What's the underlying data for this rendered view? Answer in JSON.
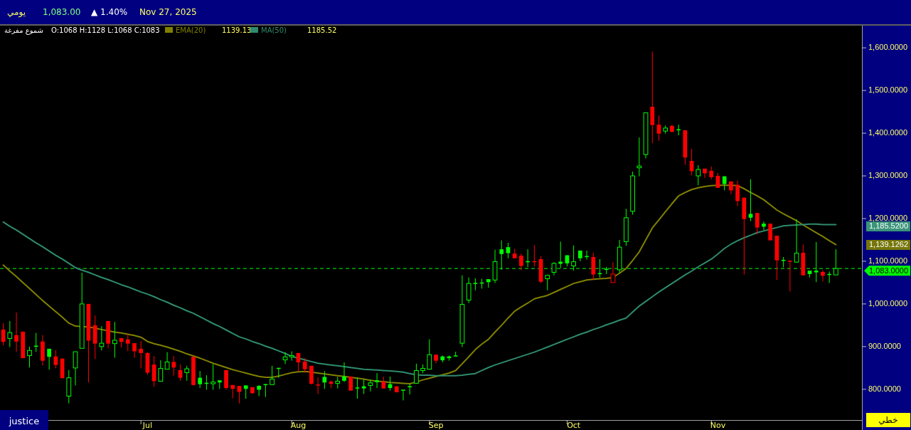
{
  "chart_data": {
    "type": "candlestick",
    "title": "يومي",
    "subtitle": "شموع مفرغة",
    "categories": [
      null,
      null,
      null,
      null,
      null,
      null,
      null,
      null,
      null,
      null,
      null,
      null,
      null,
      null,
      null,
      null,
      null,
      null,
      null,
      null,
      null,
      null,
      "Jul",
      null,
      null,
      null,
      null,
      null,
      null,
      null,
      null,
      null,
      null,
      null,
      null,
      null,
      null,
      null,
      null,
      null,
      null,
      null,
      null,
      null,
      null,
      "Aug",
      null,
      null,
      null,
      null,
      null,
      null,
      null,
      null,
      null,
      null,
      null,
      null,
      null,
      null,
      null,
      null,
      null,
      null,
      null,
      null,
      "Sep",
      null,
      null,
      null,
      null,
      null,
      null,
      null,
      null,
      null,
      null,
      null,
      null,
      null,
      null,
      null,
      null,
      null,
      null,
      null,
      null,
      "Oct",
      null,
      null,
      null,
      null,
      null,
      null,
      null,
      null,
      null,
      null,
      null,
      null,
      null,
      null,
      null,
      null,
      null,
      null,
      null,
      null,
      null,
      "Nov",
      null,
      null,
      null,
      null,
      null,
      null,
      null,
      null,
      null,
      null,
      null,
      null,
      null,
      null,
      null,
      null,
      null,
      null
    ],
    "ohlc": [
      [
        940,
        955,
        903,
        911
      ],
      [
        919,
        960,
        899,
        933
      ],
      [
        927,
        980,
        888,
        912
      ],
      [
        935,
        935,
        873,
        873
      ],
      [
        879,
        900,
        851,
        891
      ],
      [
        901,
        932,
        888,
        901
      ],
      [
        912,
        927,
        856,
        867
      ],
      [
        895,
        895,
        846,
        876
      ],
      [
        877,
        892,
        849,
        857
      ],
      [
        872,
        872,
        826,
        826
      ],
      [
        784,
        845,
        767,
        827
      ],
      [
        850,
        888,
        809,
        888
      ],
      [
        896,
        1073,
        896,
        1000
      ],
      [
        1000,
        1000,
        816,
        914
      ],
      [
        950,
        973,
        871,
        907
      ],
      [
        900,
        948,
        891,
        908
      ],
      [
        960,
        960,
        896,
        907
      ],
      [
        907,
        958,
        874,
        915
      ],
      [
        920,
        920,
        898,
        911
      ],
      [
        917,
        929,
        889,
        907
      ],
      [
        908,
        908,
        874,
        889
      ],
      [
        895,
        913,
        849,
        885
      ],
      [
        885,
        887,
        834,
        839
      ],
      [
        858,
        878,
        806,
        819
      ],
      [
        819,
        868,
        819,
        849
      ],
      [
        847,
        887,
        847,
        864
      ],
      [
        864,
        878,
        832,
        851
      ],
      [
        845,
        858,
        820,
        827
      ],
      [
        839,
        855,
        820,
        848
      ],
      [
        876,
        876,
        809,
        810
      ],
      [
        827,
        843,
        803,
        812
      ],
      [
        814,
        833,
        799,
        814
      ],
      [
        813,
        859,
        799,
        817
      ],
      [
        821,
        821,
        801,
        816
      ],
      [
        845,
        845,
        799,
        803
      ],
      [
        810,
        810,
        779,
        801
      ],
      [
        808,
        808,
        767,
        794
      ],
      [
        809,
        809,
        778,
        801
      ],
      [
        805,
        805,
        789,
        791
      ],
      [
        808,
        810,
        784,
        799
      ],
      [
        811,
        812,
        782,
        811
      ],
      [
        811,
        855,
        810,
        824
      ],
      [
        849,
        850,
        827,
        849
      ],
      [
        869,
        887,
        859,
        876
      ],
      [
        876,
        889,
        867,
        879
      ],
      [
        885,
        885,
        842,
        863
      ],
      [
        865,
        873,
        839,
        847
      ],
      [
        855,
        855,
        811,
        813
      ],
      [
        810,
        828,
        789,
        810
      ],
      [
        829,
        843,
        801,
        816
      ],
      [
        818,
        821,
        803,
        813
      ],
      [
        814,
        829,
        802,
        819
      ],
      [
        830,
        863,
        817,
        820
      ],
      [
        830,
        830,
        797,
        797
      ],
      [
        803,
        828,
        778,
        803
      ],
      [
        807,
        823,
        789,
        802
      ],
      [
        809,
        823,
        795,
        815
      ],
      [
        821,
        838,
        803,
        817
      ],
      [
        818,
        830,
        802,
        802
      ],
      [
        812,
        830,
        797,
        803
      ],
      [
        807,
        807,
        793,
        793
      ],
      [
        798,
        798,
        774,
        798
      ],
      [
        806,
        813,
        788,
        806
      ],
      [
        814,
        860,
        814,
        844
      ],
      [
        844,
        858,
        838,
        849
      ],
      [
        847,
        917,
        847,
        881
      ],
      [
        881,
        881,
        861,
        867
      ],
      [
        877,
        879,
        863,
        868
      ],
      [
        877,
        879,
        867,
        873
      ],
      [
        878,
        888,
        878,
        878
      ],
      [
        908,
        1067,
        899,
        999
      ],
      [
        1009,
        1062,
        1002,
        1048
      ],
      [
        1048,
        1060,
        1032,
        1048
      ],
      [
        1049,
        1059,
        1036,
        1049
      ],
      [
        1058,
        1058,
        1038,
        1051
      ],
      [
        1056,
        1127,
        1049,
        1099
      ],
      [
        1128,
        1149,
        1080,
        1117
      ],
      [
        1133,
        1143,
        1107,
        1119
      ],
      [
        1118,
        1129,
        1107,
        1107
      ],
      [
        1113,
        1118,
        1079,
        1089
      ],
      [
        1099,
        1128,
        1086,
        1099
      ],
      [
        1099,
        1138,
        1088,
        1099
      ],
      [
        1105,
        1112,
        1049,
        1052
      ],
      [
        1059,
        1068,
        1032,
        1067
      ],
      [
        1074,
        1098,
        1067,
        1095
      ],
      [
        1099,
        1146,
        1084,
        1094
      ],
      [
        1114,
        1114,
        1088,
        1095
      ],
      [
        1089,
        1137,
        1078,
        1099
      ],
      [
        1125,
        1125,
        1100,
        1107
      ],
      [
        1111,
        1125,
        1104,
        1111
      ],
      [
        1110,
        1120,
        1056,
        1069
      ],
      [
        1071,
        1105,
        1062,
        1071
      ],
      [
        1081,
        1087,
        1070,
        1081
      ],
      [
        1050,
        1098,
        1050,
        1070
      ],
      [
        1080,
        1150,
        1072,
        1133
      ],
      [
        1146,
        1223,
        1136,
        1202
      ],
      [
        1217,
        1310,
        1209,
        1300
      ],
      [
        1319,
        1390,
        1299,
        1323
      ],
      [
        1350,
        1448,
        1341,
        1448
      ],
      [
        1462,
        1591,
        1377,
        1419
      ],
      [
        1420,
        1441,
        1382,
        1399
      ],
      [
        1405,
        1418,
        1399,
        1412
      ],
      [
        1417,
        1420,
        1402,
        1403
      ],
      [
        1408,
        1420,
        1395,
        1408
      ],
      [
        1407,
        1407,
        1326,
        1343
      ],
      [
        1335,
        1363,
        1301,
        1311
      ],
      [
        1300,
        1325,
        1278,
        1315
      ],
      [
        1317,
        1317,
        1295,
        1306
      ],
      [
        1312,
        1322,
        1292,
        1297
      ],
      [
        1300,
        1307,
        1272,
        1272
      ],
      [
        1299,
        1299,
        1266,
        1281
      ],
      [
        1287,
        1287,
        1257,
        1266
      ],
      [
        1279,
        1289,
        1229,
        1241
      ],
      [
        1249,
        1249,
        1069,
        1199
      ],
      [
        1211,
        1292,
        1194,
        1202
      ],
      [
        1213,
        1213,
        1163,
        1179
      ],
      [
        1188,
        1193,
        1173,
        1181
      ],
      [
        1188,
        1188,
        1149,
        1149
      ],
      [
        1160,
        1160,
        1056,
        1102
      ],
      [
        1102,
        1110,
        1086,
        1102
      ],
      [
        1100,
        1102,
        1029,
        1100
      ],
      [
        1098,
        1198,
        1098,
        1119
      ],
      [
        1120,
        1139,
        1067,
        1067
      ],
      [
        1078,
        1078,
        1062,
        1070
      ],
      [
        1078,
        1145,
        1051,
        1074
      ],
      [
        1075,
        1079,
        1053,
        1066
      ],
      [
        1069,
        1076,
        1049,
        1069
      ],
      [
        1068,
        1128,
        1068,
        1083
      ]
    ],
    "colors": [
      "#ff0000",
      "#00ff00",
      "#ff0000",
      "#ff0000",
      "#00ff00",
      "#00ff00",
      "#ff0000",
      "#00ff00",
      "#ff0000",
      "#ff0000",
      "#00ff00",
      "#00ff00",
      "#00ff00",
      "#ff0000",
      "#ff0000",
      "#00ff00",
      "#ff0000",
      "#00ff00",
      "#ff0000",
      "#ff0000",
      "#ff0000",
      "#ff0000",
      "#ff0000",
      "#ff0000",
      "#00ff00",
      "#00ff00",
      "#ff0000",
      "#ff0000",
      "#00ff00",
      "#ff0000",
      "#00ff00",
      "#00ff00",
      "#00ff00",
      "#00ff00",
      "#ff0000",
      "#ff0000",
      "#ff0000",
      "#00ff00",
      "#ff0000",
      "#00ff00",
      "#00ff00",
      "#00ff00",
      "#00ff00",
      "#00ff00",
      "#00ff00",
      "#ff0000",
      "#ff0000",
      "#ff0000",
      "#ff0000",
      "#00ff00",
      "#ff0000",
      "#00ff00",
      "#00ff00",
      "#ff0000",
      "#00ff00",
      "#00ff00",
      "#00ff00",
      "#00ff00",
      "#ff0000",
      "#00ff00",
      "#ff0000",
      "#00ff00",
      "#00ff00",
      "#00ff00",
      "#00ff00",
      "#00ff00",
      "#ff0000",
      "#00ff00",
      "#00ff00",
      "#00ff00",
      "#00ff00",
      "#00ff00",
      "#00ff00",
      "#00ff00",
      "#00ff00",
      "#00ff00",
      "#00ff00",
      "#00ff00",
      "#ff0000",
      "#ff0000",
      "#00ff00",
      "#ff0000",
      "#ff0000",
      "#00ff00",
      "#00ff00",
      "#00ff00",
      "#00ff00",
      "#00ff00",
      "#00ff00",
      "#00ff00",
      "#ff0000",
      "#00ff00",
      "#00ff00",
      "#ff0000",
      "#00ff00",
      "#00ff00",
      "#00ff00",
      "#00ff00",
      "#00ff00",
      "#ff0000",
      "#ff0000",
      "#00ff00",
      "#ff0000",
      "#00ff00",
      "#ff0000",
      "#ff0000",
      "#00ff00",
      "#ff0000",
      "#ff0000",
      "#ff0000",
      "#00ff00",
      "#ff0000",
      "#ff0000",
      "#ff0000",
      "#00ff00",
      "#ff0000",
      "#00ff00",
      "#ff0000",
      "#ff0000",
      "#00ff00",
      "#ff0000",
      "#00ff00",
      "#ff0000",
      "#00ff00",
      "#00ff00",
      "#ff0000",
      "#00ff00",
      "#00ff00"
    ],
    "series": [
      {
        "type": "line",
        "name": "EMA(20)",
        "color": "#808000",
        "values": [
          1091,
          1077,
          1064,
          1050,
          1036,
          1022,
          1008,
          995,
          982,
          969,
          955,
          948,
          947,
          946,
          943,
          940,
          937,
          934,
          932,
          929,
          926,
          922,
          912,
          907,
          903,
          899,
          894,
          889,
          883,
          878,
          873,
          867,
          861,
          856,
          851,
          846,
          842,
          838,
          834,
          830,
          828,
          828,
          831,
          835,
          839,
          841,
          842,
          840,
          838,
          836,
          834,
          832,
          830,
          828,
          826,
          824,
          821,
          819,
          818,
          816,
          815,
          814,
          813,
          817,
          822,
          826,
          830,
          834,
          838,
          844,
          860,
          876,
          893,
          906,
          917,
          934,
          950,
          967,
          983,
          993,
          1002,
          1012,
          1016,
          1020,
          1027,
          1034,
          1041,
          1048,
          1052,
          1056,
          1058,
          1059,
          1060,
          1062,
          1072,
          1083,
          1102,
          1122,
          1150,
          1178,
          1197,
          1216,
          1235,
          1253,
          1261,
          1268,
          1272,
          1275,
          1277,
          1278,
          1278,
          1278,
          1277,
          1270,
          1261,
          1253,
          1244,
          1232,
          1220,
          1211,
          1203,
          1195,
          1185,
          1176,
          1167,
          1158,
          1148,
          1139
        ],
        "line_style": "solid"
      },
      {
        "type": "line",
        "name": "MA(50)",
        "color": "#2e8b6e",
        "values": [
          1192,
          1182,
          1173,
          1163,
          1153,
          1143,
          1134,
          1124,
          1114,
          1105,
          1095,
          1085,
          1079,
          1074,
          1068,
          1062,
          1057,
          1051,
          1045,
          1040,
          1034,
          1028,
          1023,
          1017,
          1010,
          1004,
          997,
          991,
          984,
          978,
          970,
          962,
          954,
          947,
          939,
          931,
          923,
          918,
          912,
          907,
          901,
          896,
          890,
          884,
          877,
          873,
          869,
          865,
          861,
          859,
          857,
          855,
          853,
          851,
          849,
          847,
          846,
          845,
          844,
          843,
          842,
          840,
          837,
          834,
          833,
          833,
          832,
          832,
          832,
          832,
          833,
          835,
          837,
          844,
          851,
          857,
          862,
          867,
          872,
          877,
          882,
          887,
          893,
          899,
          905,
          911,
          917,
          923,
          929,
          934,
          940,
          945,
          951,
          956,
          962,
          967,
          981,
          995,
          1006,
          1017,
          1028,
          1038,
          1048,
          1058,
          1068,
          1077,
          1087,
          1096,
          1105,
          1117,
          1130,
          1140,
          1148,
          1155,
          1161,
          1167,
          1171,
          1175,
          1179,
          1183,
          1184,
          1185,
          1186,
          1187,
          1187,
          1186,
          1186,
          1186
        ],
        "line_style": "solid"
      }
    ],
    "ylim": [
      728,
      1652
    ],
    "yticks": [
      {
        "value": 800,
        "label": "800.0000"
      },
      {
        "value": 900,
        "label": "900.0000"
      },
      {
        "value": 1000,
        "label": "1,000.0000"
      },
      {
        "value": 1100,
        "label": "1,100.0000"
      },
      {
        "value": 1200,
        "label": "1,200.0000"
      },
      {
        "value": 1300,
        "label": "1,300.0000"
      },
      {
        "value": 1400,
        "label": "1,400.0000"
      },
      {
        "value": 1500,
        "label": "1,500.0000"
      },
      {
        "value": 1600,
        "label": "1,600.0000"
      }
    ],
    "ref_lines": [
      {
        "axis": "y",
        "value": 1083,
        "label": "1,083.0000",
        "color": "#00ff00",
        "line_style": "dashed"
      }
    ],
    "legend": "top left",
    "annotations": [
      "1,083.00",
      "▲ 1.40%",
      "Nov 27, 2025",
      "O:1068 H:1128 L:1068 C:1083",
      "1139.13",
      "1185.52",
      "justice",
      "خطي",
      "1,185.5200",
      "1,139.1262"
    ]
  }
}
